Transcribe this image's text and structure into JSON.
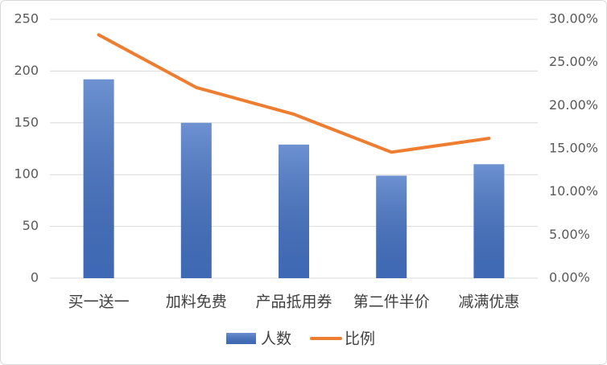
{
  "chart_data": {
    "type": "combo",
    "categories": [
      "买一送一",
      "加料免费",
      "产品抵用券",
      "第二件半价",
      "减满优惠"
    ],
    "series": [
      {
        "name": "人数",
        "type": "bar",
        "color": "#4472c4",
        "values": [
          192,
          150,
          129,
          99,
          110
        ]
      },
      {
        "name": "比例",
        "type": "line",
        "color": "#ed7d31",
        "axis": "y2",
        "values": [
          28.2,
          22.1,
          19.0,
          14.6,
          16.2
        ]
      }
    ],
    "ylim": [
      0,
      250
    ],
    "yticks": [
      0,
      50,
      100,
      150,
      200,
      250
    ],
    "y2lim": [
      0,
      30
    ],
    "y2ticks": [
      {
        "value": 0,
        "label": "0.00%"
      },
      {
        "value": 5,
        "label": "5.00%"
      },
      {
        "value": 10,
        "label": "10.00%"
      },
      {
        "value": 15,
        "label": "15.00%"
      },
      {
        "value": 20,
        "label": "20.00%"
      },
      {
        "value": 25,
        "label": "25.00%"
      },
      {
        "value": 30,
        "label": "30.00%"
      }
    ],
    "grid": true,
    "legend": "bottom"
  }
}
